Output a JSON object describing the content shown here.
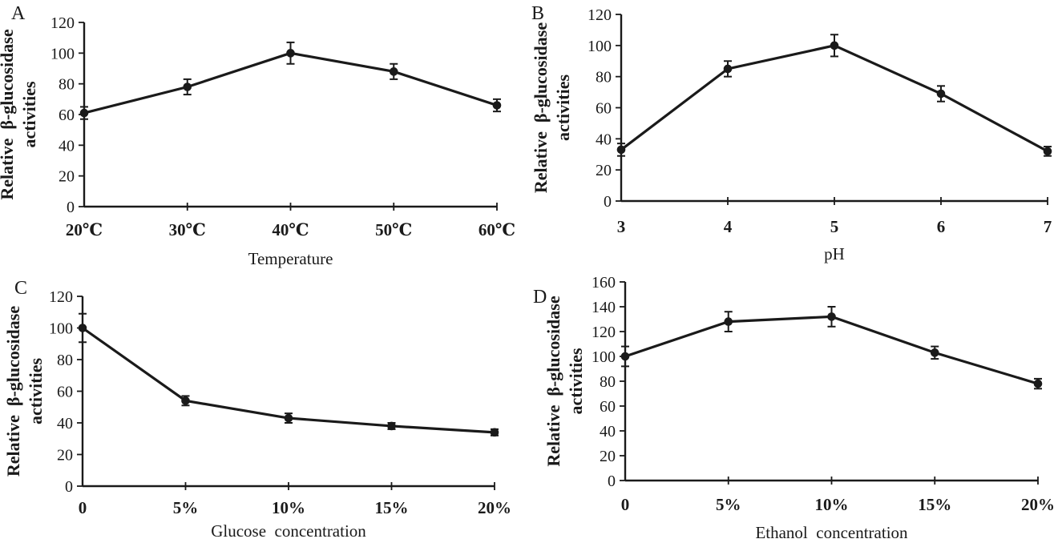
{
  "figure": {
    "background": "#ffffff",
    "ink_color": "#1a1a1a",
    "description_visible_text_only": true
  },
  "chart_data": [
    {
      "panel_label": "A",
      "type": "line",
      "categories": [
        "20℃",
        "30℃",
        "40℃",
        "50℃",
        "60℃"
      ],
      "values": [
        61,
        78,
        100,
        88,
        66
      ],
      "errors": [
        4,
        5,
        7,
        5,
        4
      ],
      "xlabel": "Temperature",
      "ylabel": "Relative  β-glucosidase activities",
      "ylabel_lines": [
        "Relative  β-glucosidase",
        "activities"
      ],
      "ylim": [
        0,
        120
      ],
      "yticks": [
        0,
        20,
        40,
        60,
        80,
        100,
        120
      ],
      "grid": false,
      "legend": "none",
      "marker": "filled-circle",
      "error_bars": true,
      "color": "#1a1a1a"
    },
    {
      "panel_label": "B",
      "type": "line",
      "categories": [
        "3",
        "4",
        "5",
        "6",
        "7"
      ],
      "values": [
        33,
        85,
        100,
        69,
        32
      ],
      "errors": [
        4,
        5,
        7,
        5,
        3
      ],
      "xlabel": "pH",
      "ylabel": "Relative  β-glucosidase activities",
      "ylabel_lines": [
        "Relative  β-glucosidase",
        "activities"
      ],
      "ylim": [
        0,
        120
      ],
      "yticks": [
        0,
        20,
        40,
        60,
        80,
        100,
        120
      ],
      "grid": false,
      "legend": "none",
      "marker": "filled-circle",
      "error_bars": true,
      "color": "#1a1a1a"
    },
    {
      "panel_label": "C",
      "type": "line",
      "categories": [
        "0",
        "5%",
        "10%",
        "15%",
        "20%"
      ],
      "values": [
        100,
        54,
        43,
        38,
        34
      ],
      "errors": [
        9,
        3,
        3,
        2,
        2
      ],
      "xlabel": "Glucose  concentration",
      "ylabel": "Relative  β-glucosidase activities",
      "ylabel_lines": [
        "Relative  β-glucosidase",
        "activities"
      ],
      "ylim": [
        0,
        120
      ],
      "yticks": [
        0,
        20,
        40,
        60,
        80,
        100,
        120
      ],
      "grid": false,
      "legend": "none",
      "marker": "filled-circle",
      "error_bars": true,
      "color": "#1a1a1a"
    },
    {
      "panel_label": "D",
      "type": "line",
      "categories": [
        "0",
        "5%",
        "10%",
        "15%",
        "20%"
      ],
      "values": [
        100,
        128,
        132,
        103,
        78
      ],
      "errors": [
        8,
        8,
        8,
        5,
        4
      ],
      "xlabel": "Ethanol  concentration",
      "ylabel": "Relative  β-glucosidase activities",
      "ylabel_lines": [
        "Relative  β-glucosidase",
        "activities"
      ],
      "ylim": [
        0,
        160
      ],
      "yticks": [
        0,
        20,
        40,
        60,
        80,
        100,
        120,
        140,
        160
      ],
      "grid": false,
      "legend": "none",
      "marker": "filled-circle",
      "error_bars": true,
      "color": "#1a1a1a"
    }
  ]
}
